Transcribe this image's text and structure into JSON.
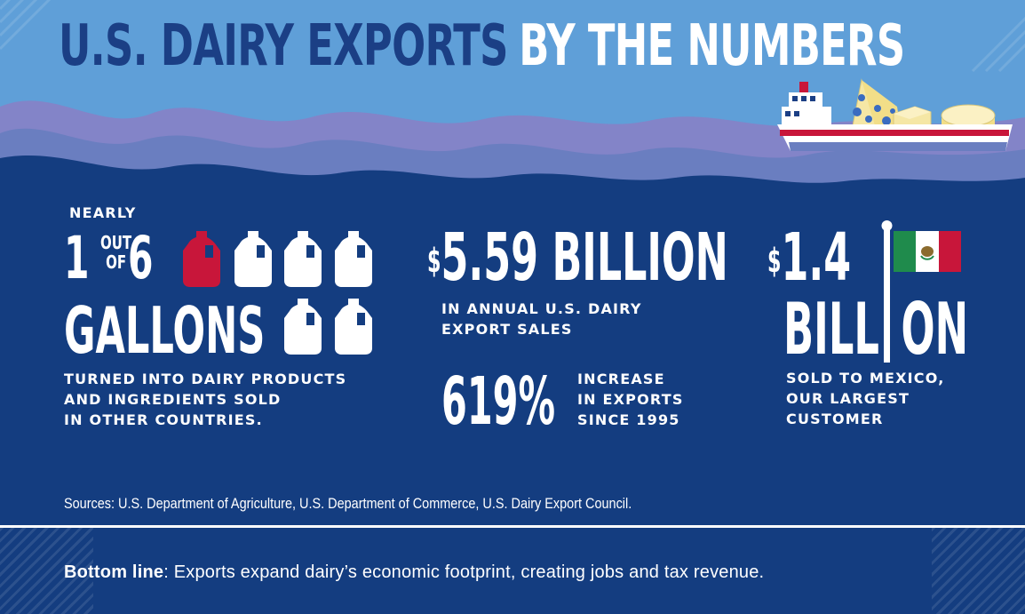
{
  "header": {
    "title_part1": "U.S. DAIRY EXPORTS",
    "title_part2": "BY THE NUMBERS"
  },
  "stat_gallons": {
    "prefix": "NEARLY",
    "numerator": "1",
    "out_word": "OUT",
    "of_word": "OF",
    "denominator": "6",
    "unit": "GALLONS",
    "description_lines": [
      "TURNED INTO DAIRY PRODUCTS",
      "AND INGREDIENTS SOLD",
      "IN OTHER COUNTRIES."
    ],
    "jugs_total": 6,
    "jugs_highlighted": 1,
    "highlight_color": "#c8163a",
    "jug_color": "#ffffff"
  },
  "stat_sales": {
    "currency": "$",
    "value": "5.59 BILLION",
    "description_lines": [
      "IN ANNUAL U.S. DAIRY",
      "EXPORT SALES"
    ]
  },
  "stat_increase": {
    "value": "619%",
    "description_lines": [
      "INCREASE",
      "IN EXPORTS",
      "SINCE 1995"
    ]
  },
  "stat_mexico": {
    "currency": "$",
    "value": "1.4",
    "unit_part1": "BILL",
    "unit_part2": "ON",
    "description_lines": [
      "SOLD TO MEXICO,",
      "OUR LARGEST",
      "CUSTOMER"
    ],
    "flag_colors": {
      "green": "#1f8b4c",
      "white": "#ffffff",
      "red": "#c8163a"
    }
  },
  "sources": "Sources: U.S. Department of Agriculture, U.S. Department of Commerce, U.S. Dairy Export Council.",
  "bottom_line": {
    "label": "Bottom line",
    "text": ": Exports expand dairy’s economic footprint, creating jobs and tax revenue."
  },
  "colors": {
    "navy": "#143d80",
    "sky": "#5f9fd8",
    "title_dark": "#1b3f85",
    "wave": "#6a7ec0"
  },
  "icons": [
    "cargo-ship-icon",
    "milk-jug-icon",
    "mexico-flag-icon",
    "cheese-icon",
    "butter-icon"
  ]
}
